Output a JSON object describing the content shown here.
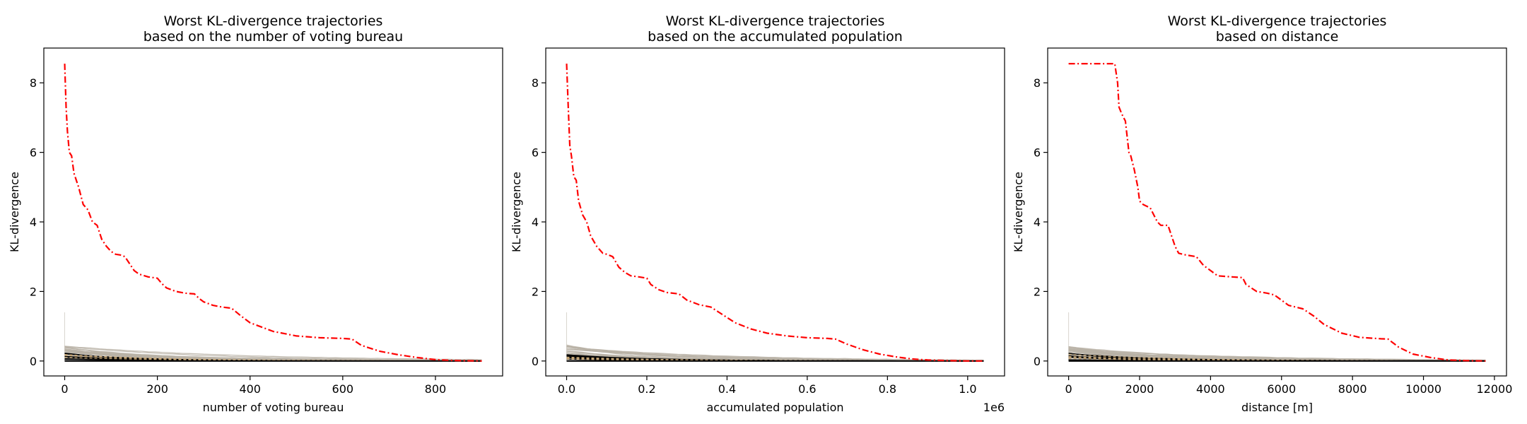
{
  "chart_data": [
    {
      "type": "line",
      "title_line1": "Worst KL-divergence trajectories",
      "title_line2": "based on the number of voting bureau",
      "xlabel": "number of voting bureau",
      "ylabel": "KL-divergence",
      "xlim": [
        -45,
        945
      ],
      "ylim": [
        -0.43,
        9.0
      ],
      "x_ticks": [
        0,
        200,
        400,
        600,
        800
      ],
      "x_tick_labels": [
        "0",
        "200",
        "400",
        "600",
        "800"
      ],
      "y_ticks": [
        0,
        2,
        4,
        6,
        8
      ],
      "y_tick_labels": [
        "0",
        "2",
        "4",
        "6",
        "8"
      ],
      "x_offset_label": "",
      "x_max": 900,
      "worst_series": {
        "color": "#ff0000",
        "style": "dash-dot",
        "x": [
          0,
          3,
          6,
          10,
          15,
          20,
          25,
          30,
          40,
          50,
          60,
          70,
          80,
          90,
          100,
          110,
          120,
          130,
          140,
          150,
          160,
          180,
          200,
          210,
          220,
          240,
          260,
          280,
          290,
          300,
          320,
          340,
          360,
          380,
          400,
          450,
          500,
          550,
          600,
          620,
          640,
          680,
          720,
          760,
          800,
          830,
          850,
          900
        ],
        "y": [
          8.55,
          7.3,
          6.6,
          6.0,
          5.9,
          5.4,
          5.2,
          5.0,
          4.5,
          4.35,
          4.0,
          3.9,
          3.5,
          3.3,
          3.15,
          3.07,
          3.05,
          3.0,
          2.8,
          2.6,
          2.5,
          2.42,
          2.38,
          2.22,
          2.1,
          2.0,
          1.95,
          1.93,
          1.8,
          1.7,
          1.6,
          1.55,
          1.52,
          1.3,
          1.1,
          0.85,
          0.72,
          0.67,
          0.65,
          0.63,
          0.45,
          0.28,
          0.18,
          0.1,
          0.04,
          0.02,
          0.01,
          0.0
        ]
      }
    },
    {
      "type": "line",
      "title_line1": "Worst KL-divergence trajectories",
      "title_line2": "based on the accumulated population",
      "xlabel": "accumulated population",
      "ylabel": "KL-divergence",
      "xlim": [
        -0.052,
        1.092
      ],
      "ylim": [
        -0.43,
        9.0
      ],
      "x_ticks": [
        0,
        0.2,
        0.4,
        0.6,
        0.8,
        1.0
      ],
      "x_tick_labels": [
        "0.0",
        "0.2",
        "0.4",
        "0.6",
        "0.8",
        "1.0"
      ],
      "y_ticks": [
        0,
        2,
        4,
        6,
        8
      ],
      "y_tick_labels": [
        "0",
        "2",
        "4",
        "6",
        "8"
      ],
      "x_offset_label": "1e6",
      "x_max": 1.04,
      "worst_series": {
        "color": "#ff0000",
        "style": "dash-dot",
        "x": [
          0,
          0.004,
          0.008,
          0.012,
          0.018,
          0.024,
          0.03,
          0.04,
          0.05,
          0.06,
          0.075,
          0.09,
          0.1,
          0.115,
          0.13,
          0.145,
          0.16,
          0.18,
          0.2,
          0.21,
          0.23,
          0.25,
          0.28,
          0.3,
          0.33,
          0.36,
          0.38,
          0.42,
          0.46,
          0.5,
          0.55,
          0.6,
          0.65,
          0.67,
          0.7,
          0.74,
          0.78,
          0.82,
          0.86,
          0.9,
          0.95,
          1.0,
          1.04
        ],
        "y": [
          8.55,
          7.3,
          6.2,
          5.9,
          5.3,
          5.2,
          4.6,
          4.2,
          4.0,
          3.6,
          3.3,
          3.1,
          3.07,
          3.0,
          2.7,
          2.55,
          2.45,
          2.42,
          2.38,
          2.2,
          2.05,
          1.97,
          1.93,
          1.75,
          1.62,
          1.55,
          1.4,
          1.1,
          0.92,
          0.8,
          0.72,
          0.67,
          0.65,
          0.63,
          0.48,
          0.32,
          0.2,
          0.12,
          0.06,
          0.03,
          0.01,
          0.0,
          0.0
        ]
      }
    },
    {
      "type": "line",
      "title_line1": "Worst KL-divergence trajectories",
      "title_line2": "based on distance",
      "xlabel": "distance [m]",
      "ylabel": "KL-divergence",
      "xlim": [
        -590,
        12340
      ],
      "ylim": [
        -0.43,
        9.0
      ],
      "x_ticks": [
        0,
        2000,
        4000,
        6000,
        8000,
        10000,
        12000
      ],
      "x_tick_labels": [
        "0",
        "2000",
        "4000",
        "6000",
        "8000",
        "10000",
        "12000"
      ],
      "y_ticks": [
        0,
        2,
        4,
        6,
        8
      ],
      "y_tick_labels": [
        "0",
        "2",
        "4",
        "6",
        "8"
      ],
      "x_offset_label": "",
      "x_max": 11750,
      "worst_series": {
        "color": "#ff0000",
        "style": "dash-dot",
        "x": [
          0,
          1300,
          1380,
          1420,
          1500,
          1600,
          1700,
          1750,
          1850,
          1950,
          2000,
          2100,
          2300,
          2500,
          2600,
          2800,
          3000,
          3100,
          3300,
          3600,
          3800,
          4000,
          4200,
          4600,
          4900,
          5000,
          5300,
          5600,
          5800,
          6200,
          6600,
          6900,
          7200,
          7700,
          8200,
          8800,
          9000,
          9300,
          9700,
          10200,
          10700,
          11200,
          11750
        ],
        "y": [
          8.55,
          8.55,
          8.0,
          7.3,
          7.1,
          6.9,
          6.0,
          5.9,
          5.5,
          5.0,
          4.6,
          4.5,
          4.4,
          4.0,
          3.9,
          3.9,
          3.3,
          3.1,
          3.05,
          3.0,
          2.75,
          2.6,
          2.45,
          2.42,
          2.4,
          2.2,
          2.0,
          1.95,
          1.9,
          1.6,
          1.5,
          1.3,
          1.05,
          0.8,
          0.68,
          0.64,
          0.63,
          0.4,
          0.2,
          0.1,
          0.03,
          0.01,
          0.0
        ]
      }
    }
  ],
  "colors": {
    "worst": "#ff0000",
    "gray_series": "#b8b2a6",
    "black_series": "#000000",
    "dashed_series": "#c8a878"
  }
}
